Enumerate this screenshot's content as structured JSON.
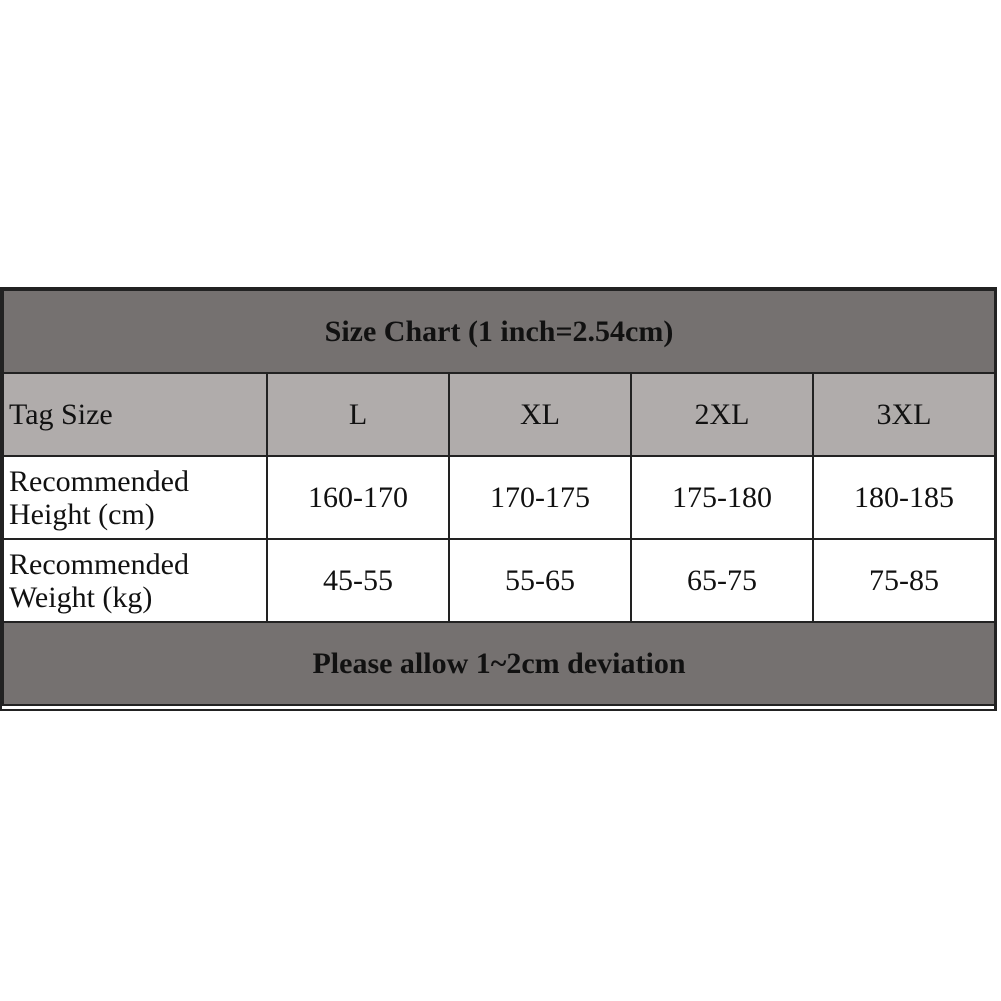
{
  "title": "Size Chart (1 inch=2.54cm)",
  "header": {
    "label": "Tag Size",
    "sizes": [
      "L",
      "XL",
      "2XL",
      "3XL"
    ]
  },
  "rows": [
    {
      "label_line1": "Recommended",
      "label_line2": "Height (cm)",
      "values": [
        "160-170",
        "170-175",
        "175-180",
        "180-185"
      ]
    },
    {
      "label_line1": "Recommended",
      "label_line2": "Weight (kg)",
      "values": [
        "45-55",
        "55-65",
        "65-75",
        "75-85"
      ]
    }
  ],
  "footer": "Please allow 1~2cm deviation",
  "colors": {
    "title_bg": "#757170",
    "header_bg": "#b0acab",
    "body_bg": "#ffffff",
    "border": "#222222"
  }
}
